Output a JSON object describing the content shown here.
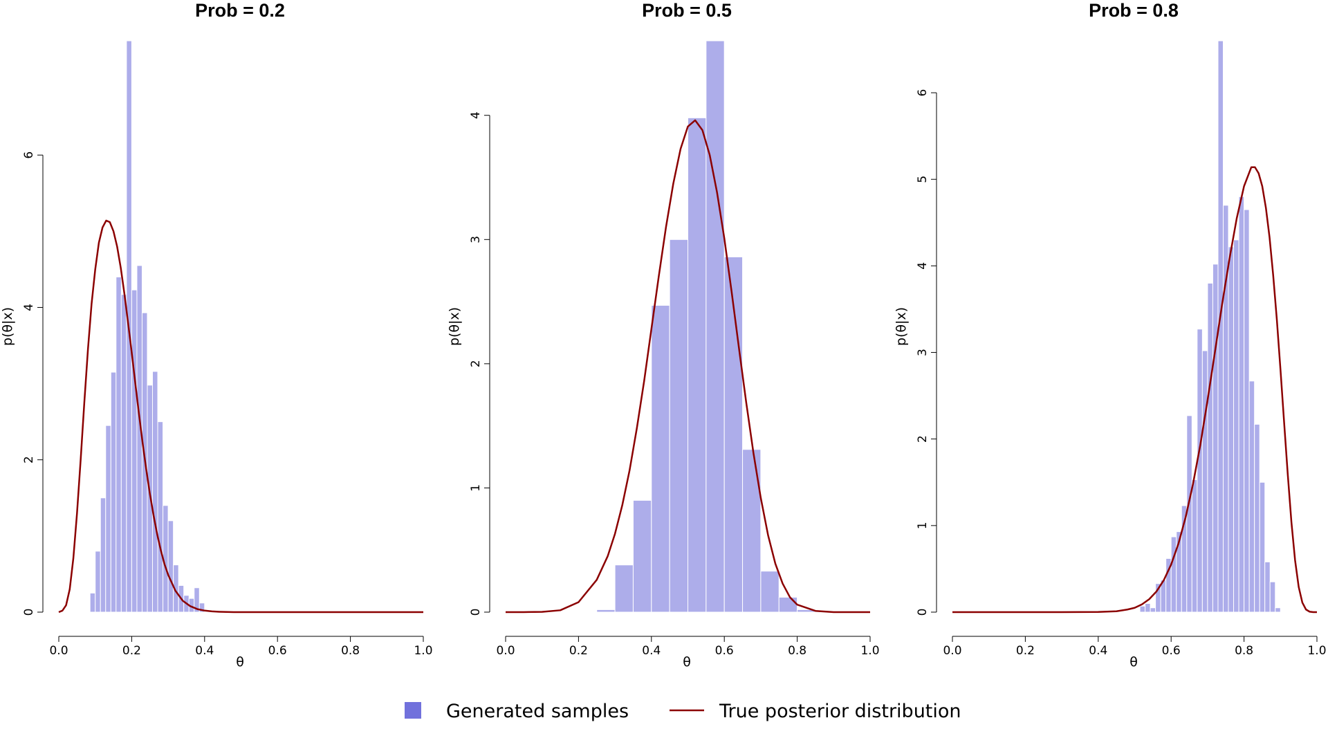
{
  "colors": {
    "bar_fill": "#adadea",
    "bar_edge": "#ffffff",
    "curve": "#8b0000",
    "legend_swatch": "#7171dc",
    "axis": "#000000"
  },
  "legend": {
    "samples_label": "Generated samples",
    "posterior_label": "True posterior distribution"
  },
  "chart_data": [
    {
      "type": "bar",
      "title": "Prob = 0.2",
      "xlabel": "θ",
      "ylabel": "p(θ|x)",
      "xlim": [
        0,
        1
      ],
      "ylim": [
        0,
        7.5
      ],
      "x_ticks": [
        "0.0",
        "0.2",
        "0.4",
        "0.6",
        "0.8",
        "1.0"
      ],
      "y_ticks": [
        "0",
        "2",
        "4",
        "6"
      ],
      "bin_width": 0.0143,
      "bins": [
        {
          "x0": 0.0857,
          "height": 0.25
        },
        {
          "x0": 0.1,
          "height": 0.8
        },
        {
          "x0": 0.1143,
          "height": 1.5
        },
        {
          "x0": 0.1286,
          "height": 2.45
        },
        {
          "x0": 0.1429,
          "height": 3.15
        },
        {
          "x0": 0.1571,
          "height": 4.4
        },
        {
          "x0": 0.1714,
          "height": 4.17
        },
        {
          "x0": 0.1857,
          "height": 7.5
        },
        {
          "x0": 0.2,
          "height": 4.23
        },
        {
          "x0": 0.2143,
          "height": 4.55
        },
        {
          "x0": 0.2286,
          "height": 3.93
        },
        {
          "x0": 0.2429,
          "height": 2.98
        },
        {
          "x0": 0.2571,
          "height": 3.16
        },
        {
          "x0": 0.2714,
          "height": 2.5
        },
        {
          "x0": 0.2857,
          "height": 1.4
        },
        {
          "x0": 0.3,
          "height": 1.2
        },
        {
          "x0": 0.3143,
          "height": 0.62
        },
        {
          "x0": 0.3286,
          "height": 0.35
        },
        {
          "x0": 0.3429,
          "height": 0.22
        },
        {
          "x0": 0.3571,
          "height": 0.18
        },
        {
          "x0": 0.3714,
          "height": 0.32
        },
        {
          "x0": 0.3857,
          "height": 0.12
        }
      ],
      "series": [
        {
          "kind": "line",
          "x": [
            0,
            0.01,
            0.02,
            0.03,
            0.04,
            0.05,
            0.06,
            0.07,
            0.08,
            0.09,
            0.1,
            0.11,
            0.12,
            0.13,
            0.14,
            0.15,
            0.16,
            0.17,
            0.18,
            0.19,
            0.2,
            0.21,
            0.22,
            0.23,
            0.24,
            0.25,
            0.26,
            0.27,
            0.28,
            0.29,
            0.3,
            0.32,
            0.34,
            0.36,
            0.38,
            0.4,
            0.42,
            0.44,
            0.46,
            0.48,
            0.5,
            0.52,
            0.55,
            0.6,
            0.7,
            0.8,
            0.9,
            1.0
          ],
          "y": [
            0,
            0.02,
            0.09,
            0.3,
            0.71,
            1.3,
            2.0,
            2.75,
            3.45,
            4.05,
            4.5,
            4.85,
            5.05,
            5.14,
            5.12,
            5.0,
            4.8,
            4.52,
            4.18,
            3.8,
            3.41,
            3.0,
            2.6,
            2.22,
            1.87,
            1.55,
            1.27,
            1.02,
            0.81,
            0.63,
            0.49,
            0.28,
            0.15,
            0.08,
            0.04,
            0.02,
            0.01,
            0.005,
            0.002,
            0,
            0,
            0,
            0,
            0,
            0,
            0,
            0,
            0
          ]
        }
      ]
    },
    {
      "type": "bar",
      "title": "Prob = 0.5",
      "xlabel": "θ",
      "ylabel": "p(θ|x)",
      "xlim": [
        0,
        1
      ],
      "ylim": [
        0,
        4.6
      ],
      "x_ticks": [
        "0.0",
        "0.2",
        "0.4",
        "0.6",
        "0.8",
        "1.0"
      ],
      "y_ticks": [
        "0",
        "1",
        "2",
        "3",
        "4"
      ],
      "bin_width": 0.05,
      "bins": [
        {
          "x0": 0.25,
          "height": 0.02
        },
        {
          "x0": 0.3,
          "height": 0.38
        },
        {
          "x0": 0.35,
          "height": 0.9
        },
        {
          "x0": 0.4,
          "height": 2.47
        },
        {
          "x0": 0.45,
          "height": 3.0
        },
        {
          "x0": 0.5,
          "height": 3.98
        },
        {
          "x0": 0.55,
          "height": 4.6
        },
        {
          "x0": 0.6,
          "height": 2.86
        },
        {
          "x0": 0.65,
          "height": 1.31
        },
        {
          "x0": 0.7,
          "height": 0.33
        },
        {
          "x0": 0.75,
          "height": 0.12
        },
        {
          "x0": 0.8,
          "height": 0.02
        }
      ],
      "series": [
        {
          "kind": "line",
          "x": [
            0,
            0.05,
            0.1,
            0.15,
            0.2,
            0.25,
            0.28,
            0.3,
            0.32,
            0.34,
            0.36,
            0.38,
            0.4,
            0.42,
            0.44,
            0.46,
            0.48,
            0.5,
            0.52,
            0.54,
            0.56,
            0.58,
            0.6,
            0.62,
            0.64,
            0.66,
            0.68,
            0.7,
            0.72,
            0.74,
            0.76,
            0.78,
            0.8,
            0.85,
            0.9,
            0.95,
            1.0
          ],
          "y": [
            0,
            0,
            0.002,
            0.015,
            0.08,
            0.26,
            0.45,
            0.63,
            0.86,
            1.14,
            1.48,
            1.86,
            2.28,
            2.7,
            3.1,
            3.45,
            3.73,
            3.91,
            3.96,
            3.88,
            3.68,
            3.38,
            3.01,
            2.58,
            2.13,
            1.69,
            1.28,
            0.92,
            0.62,
            0.39,
            0.23,
            0.12,
            0.06,
            0.01,
            0,
            0,
            0
          ]
        }
      ]
    },
    {
      "type": "bar",
      "title": "Prob = 0.8",
      "xlabel": "θ",
      "ylabel": "p(θ|x)",
      "xlim": [
        0,
        1
      ],
      "ylim": [
        0,
        6.6
      ],
      "x_ticks": [
        "0.0",
        "0.2",
        "0.4",
        "0.6",
        "0.8",
        "1.0"
      ],
      "y_ticks": [
        "0",
        "1",
        "2",
        "3",
        "4",
        "5",
        "6"
      ],
      "bin_width": 0.0143,
      "bins": [
        {
          "x0": 0.5143,
          "height": 0.07
        },
        {
          "x0": 0.5286,
          "height": 0.1
        },
        {
          "x0": 0.5429,
          "height": 0.05
        },
        {
          "x0": 0.5571,
          "height": 0.33
        },
        {
          "x0": 0.5714,
          "height": 0.37
        },
        {
          "x0": 0.5857,
          "height": 0.62
        },
        {
          "x0": 0.6,
          "height": 0.87
        },
        {
          "x0": 0.6143,
          "height": 0.93
        },
        {
          "x0": 0.6286,
          "height": 1.23
        },
        {
          "x0": 0.6429,
          "height": 2.27
        },
        {
          "x0": 0.6571,
          "height": 1.53
        },
        {
          "x0": 0.6714,
          "height": 3.27
        },
        {
          "x0": 0.6857,
          "height": 3.02
        },
        {
          "x0": 0.7,
          "height": 3.8
        },
        {
          "x0": 0.7143,
          "height": 4.02
        },
        {
          "x0": 0.7286,
          "height": 6.6
        },
        {
          "x0": 0.7429,
          "height": 4.7
        },
        {
          "x0": 0.7571,
          "height": 4.22
        },
        {
          "x0": 0.7714,
          "height": 4.3
        },
        {
          "x0": 0.7857,
          "height": 4.8
        },
        {
          "x0": 0.8,
          "height": 4.65
        },
        {
          "x0": 0.8143,
          "height": 2.67
        },
        {
          "x0": 0.8286,
          "height": 2.17
        },
        {
          "x0": 0.8429,
          "height": 1.5
        },
        {
          "x0": 0.8571,
          "height": 0.58
        },
        {
          "x0": 0.8714,
          "height": 0.35
        },
        {
          "x0": 0.8857,
          "height": 0.05
        }
      ],
      "series": [
        {
          "kind": "line",
          "x": [
            0,
            0.1,
            0.2,
            0.3,
            0.4,
            0.45,
            0.48,
            0.5,
            0.52,
            0.54,
            0.56,
            0.58,
            0.6,
            0.62,
            0.64,
            0.66,
            0.68,
            0.7,
            0.72,
            0.74,
            0.76,
            0.78,
            0.8,
            0.82,
            0.83,
            0.84,
            0.85,
            0.86,
            0.87,
            0.88,
            0.89,
            0.9,
            0.91,
            0.92,
            0.93,
            0.94,
            0.95,
            0.96,
            0.97,
            0.98,
            0.99,
            1.0
          ],
          "y": [
            0,
            0,
            0,
            0,
            0.002,
            0.01,
            0.03,
            0.05,
            0.09,
            0.15,
            0.24,
            0.37,
            0.55,
            0.79,
            1.1,
            1.48,
            1.93,
            2.45,
            3.0,
            3.56,
            4.08,
            4.55,
            4.92,
            5.14,
            5.14,
            5.07,
            4.92,
            4.67,
            4.33,
            3.89,
            3.38,
            2.8,
            2.19,
            1.59,
            1.04,
            0.6,
            0.29,
            0.11,
            0.03,
            0.005,
            0,
            0
          ]
        }
      ]
    }
  ]
}
